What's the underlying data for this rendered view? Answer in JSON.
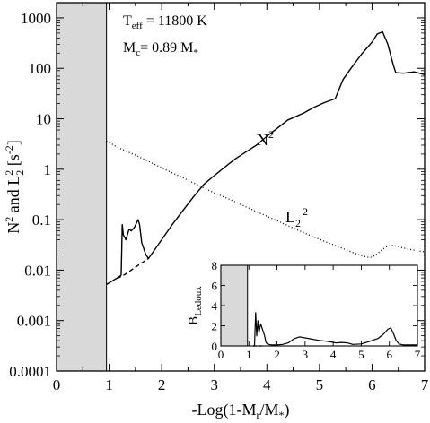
{
  "chart_data": {
    "type": "line",
    "xlabel": "-Log(1-M",
    "xlabel_sub": "r",
    "xlabel_tail": "/M",
    "xlabel_star": "*",
    "xlabel_end": ")",
    "ylabel_parts": [
      "N",
      "2",
      " and L",
      "2",
      "2",
      " [s",
      "-2",
      "]"
    ],
    "xlim": [
      0,
      7
    ],
    "ylim": [
      0.0001,
      2000
    ],
    "yscale": "log",
    "x_ticks": [
      "0",
      "1",
      "2",
      "3",
      "4",
      "5",
      "6",
      "7"
    ],
    "y_ticks": [
      "0.0001",
      "0.001",
      "0.01",
      "0.1",
      "1",
      "10",
      "100",
      "1000"
    ],
    "shaded_region_x": [
      0,
      0.95
    ],
    "annotations": {
      "teff": {
        "main": "T",
        "sub": "eff",
        "rest": " = 11800 K"
      },
      "mc": {
        "main": "M",
        "sub": "c",
        "rest": "= 0.89 M",
        "star": "*"
      }
    },
    "series": [
      {
        "name": "N2",
        "label_main": "N",
        "label_sup": "2",
        "style": "solid",
        "points": [
          [
            0.95,
            0.0052
          ],
          [
            1.05,
            0.006
          ],
          [
            1.2,
            0.0075
          ],
          [
            1.23,
            0.008
          ],
          [
            1.25,
            0.08
          ],
          [
            1.27,
            0.05
          ],
          [
            1.32,
            0.04
          ],
          [
            1.38,
            0.065
          ],
          [
            1.42,
            0.06
          ],
          [
            1.48,
            0.07
          ],
          [
            1.55,
            0.1
          ],
          [
            1.58,
            0.08
          ],
          [
            1.62,
            0.035
          ],
          [
            1.7,
            0.02
          ],
          [
            1.75,
            0.017
          ],
          [
            2.0,
            0.04
          ],
          [
            2.2,
            0.08
          ],
          [
            2.4,
            0.15
          ],
          [
            2.6,
            0.28
          ],
          [
            2.8,
            0.5
          ],
          [
            3.0,
            0.75
          ],
          [
            3.2,
            1.1
          ],
          [
            3.4,
            1.6
          ],
          [
            3.6,
            2.2
          ],
          [
            3.8,
            3.0
          ],
          [
            4.0,
            4.5
          ],
          [
            4.2,
            6.5
          ],
          [
            4.4,
            9.5
          ],
          [
            4.5,
            10.5
          ],
          [
            4.7,
            13
          ],
          [
            4.9,
            17
          ],
          [
            5.1,
            21
          ],
          [
            5.3,
            25
          ],
          [
            5.45,
            60
          ],
          [
            5.6,
            100
          ],
          [
            5.8,
            190
          ],
          [
            6.0,
            330
          ],
          [
            6.1,
            480
          ],
          [
            6.2,
            530
          ],
          [
            6.3,
            300
          ],
          [
            6.4,
            120
          ],
          [
            6.45,
            82
          ],
          [
            6.6,
            80
          ],
          [
            6.8,
            85
          ],
          [
            7.0,
            75
          ]
        ]
      },
      {
        "name": "N2 (dashed)",
        "style": "dashed",
        "points": [
          [
            1.15,
            0.0068
          ],
          [
            1.3,
            0.0082
          ],
          [
            1.45,
            0.0105
          ],
          [
            1.6,
            0.0135
          ],
          [
            1.75,
            0.017
          ]
        ]
      },
      {
        "name": "L2^2",
        "label_main": "L",
        "label_sub": "2",
        "label_sup": "2",
        "style": "dotted",
        "points": [
          [
            0.95,
            3.6
          ],
          [
            1.2,
            2.6
          ],
          [
            1.5,
            1.9
          ],
          [
            1.8,
            1.35
          ],
          [
            2.1,
            0.95
          ],
          [
            2.4,
            0.68
          ],
          [
            2.7,
            0.48
          ],
          [
            3.0,
            0.34
          ],
          [
            3.3,
            0.25
          ],
          [
            3.6,
            0.18
          ],
          [
            3.9,
            0.13
          ],
          [
            4.2,
            0.095
          ],
          [
            4.5,
            0.068
          ],
          [
            4.8,
            0.05
          ],
          [
            5.1,
            0.037
          ],
          [
            5.4,
            0.028
          ],
          [
            5.7,
            0.021
          ],
          [
            5.9,
            0.018
          ],
          [
            6.0,
            0.018
          ],
          [
            6.1,
            0.021
          ],
          [
            6.2,
            0.026
          ],
          [
            6.3,
            0.03
          ],
          [
            6.4,
            0.031
          ],
          [
            6.5,
            0.029
          ],
          [
            6.7,
            0.026
          ],
          [
            7.0,
            0.023
          ]
        ]
      }
    ],
    "inset": {
      "ylabel": "B",
      "ylabel_sub": "Ledoux",
      "xlim": [
        0,
        7
      ],
      "ylim": [
        0,
        8
      ],
      "x_ticks": [
        "0",
        "1",
        "2",
        "3",
        "4",
        "5",
        "6",
        "7"
      ],
      "y_ticks": [
        "0",
        "2",
        "4",
        "6",
        "8"
      ],
      "shaded_region_x": [
        0,
        0.95
      ],
      "series": [
        {
          "name": "B_Ledoux",
          "style": "solid",
          "points": [
            [
              1.15,
              0
            ],
            [
              1.2,
              0
            ],
            [
              1.24,
              3.3
            ],
            [
              1.28,
              1.0
            ],
            [
              1.32,
              2.5
            ],
            [
              1.36,
              1.3
            ],
            [
              1.42,
              2.2
            ],
            [
              1.5,
              1.5
            ],
            [
              1.56,
              1.0
            ],
            [
              1.6,
              0.4
            ],
            [
              1.65,
              0.2
            ],
            [
              1.8,
              0.1
            ],
            [
              2.0,
              0.1
            ],
            [
              2.2,
              0.15
            ],
            [
              2.4,
              0.3
            ],
            [
              2.6,
              0.7
            ],
            [
              2.8,
              0.9
            ],
            [
              3.0,
              0.8
            ],
            [
              3.2,
              0.7
            ],
            [
              3.5,
              0.55
            ],
            [
              3.8,
              0.45
            ],
            [
              4.1,
              0.3
            ],
            [
              4.3,
              0.35
            ],
            [
              4.5,
              0.3
            ],
            [
              4.7,
              0.15
            ],
            [
              5.0,
              0.2
            ],
            [
              5.3,
              0.45
            ],
            [
              5.6,
              0.75
            ],
            [
              5.8,
              1.2
            ],
            [
              5.95,
              1.65
            ],
            [
              6.05,
              1.8
            ],
            [
              6.15,
              1.2
            ],
            [
              6.25,
              0.5
            ],
            [
              6.35,
              0.2
            ],
            [
              6.5,
              0.1
            ],
            [
              7.0,
              0.1
            ]
          ]
        },
        {
          "name": "B_Ledoux (dashed)",
          "style": "dashed",
          "points": [
            [
              1.15,
              0
            ],
            [
              1.3,
              0
            ],
            [
              1.5,
              0
            ]
          ]
        }
      ]
    }
  }
}
